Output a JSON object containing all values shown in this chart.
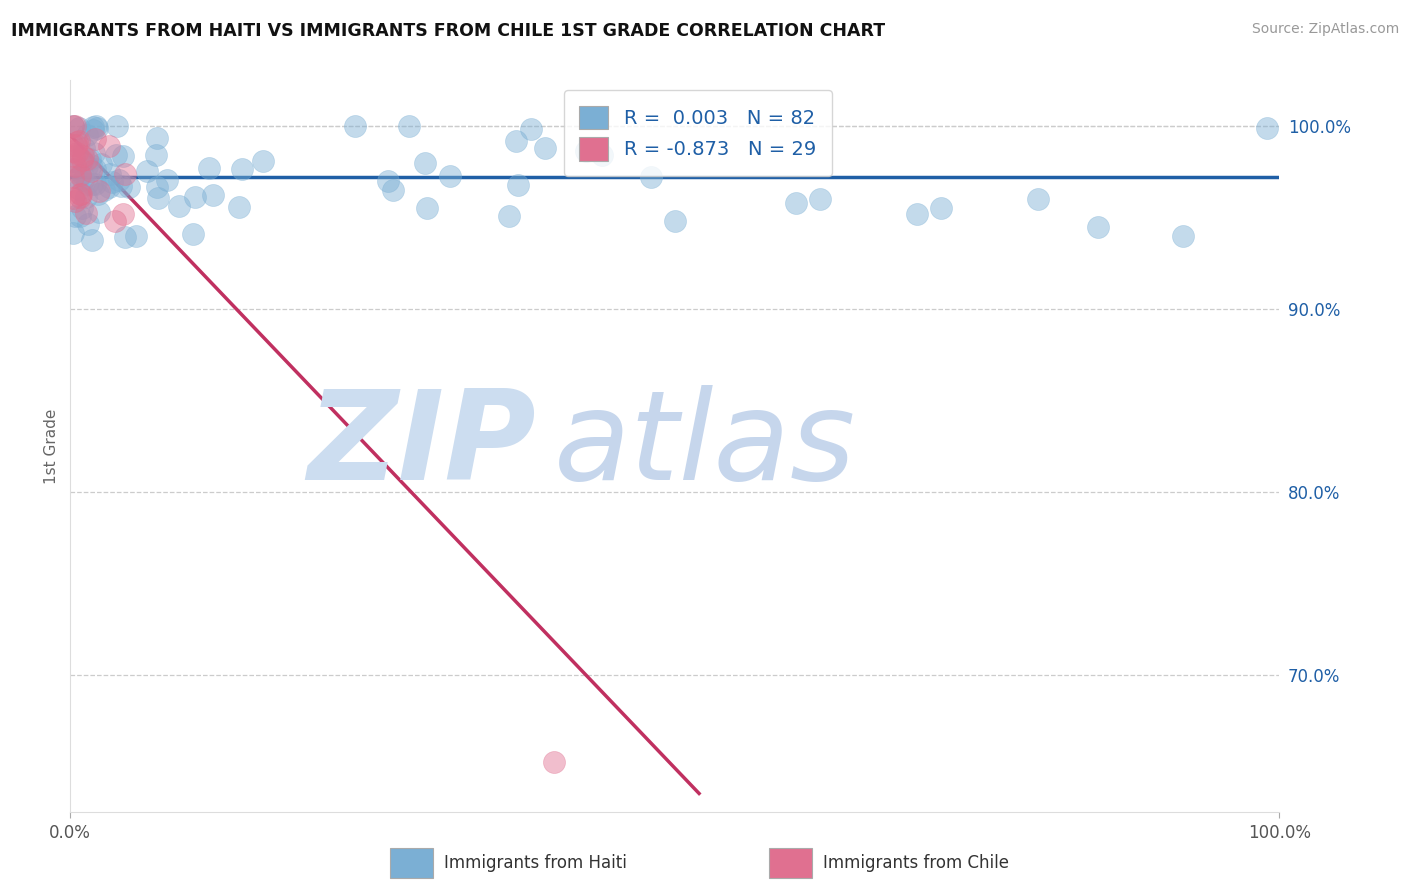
{
  "title": "IMMIGRANTS FROM HAITI VS IMMIGRANTS FROM CHILE 1ST GRADE CORRELATION CHART",
  "source": "Source: ZipAtlas.com",
  "xlabel_haiti": "Immigrants from Haiti",
  "xlabel_chile": "Immigrants from Chile",
  "ylabel": "1st Grade",
  "xlim": [
    0.0,
    1.0
  ],
  "ylim": [
    0.625,
    1.025
  ],
  "yticks": [
    0.7,
    0.8,
    0.9,
    1.0
  ],
  "ytick_labels": [
    "70.0%",
    "80.0%",
    "90.0%",
    "100.0%"
  ],
  "r_haiti": 0.003,
  "n_haiti": 82,
  "r_chile": -0.873,
  "n_chile": 29,
  "blue_scatter_color": "#7bafd4",
  "pink_scatter_color": "#e07090",
  "blue_line_color": "#1f5fa6",
  "pink_line_color": "#c03060",
  "grid_color": "#cccccc",
  "watermark_zip_color": "#ccddf0",
  "watermark_atlas_color": "#b8cce8",
  "legend_text_color": "#1f5fa6",
  "haiti_line_y": 0.972,
  "chile_line_x0": 0.0,
  "chile_line_y0": 0.995,
  "chile_line_x1": 0.52,
  "chile_line_y1": 0.635
}
